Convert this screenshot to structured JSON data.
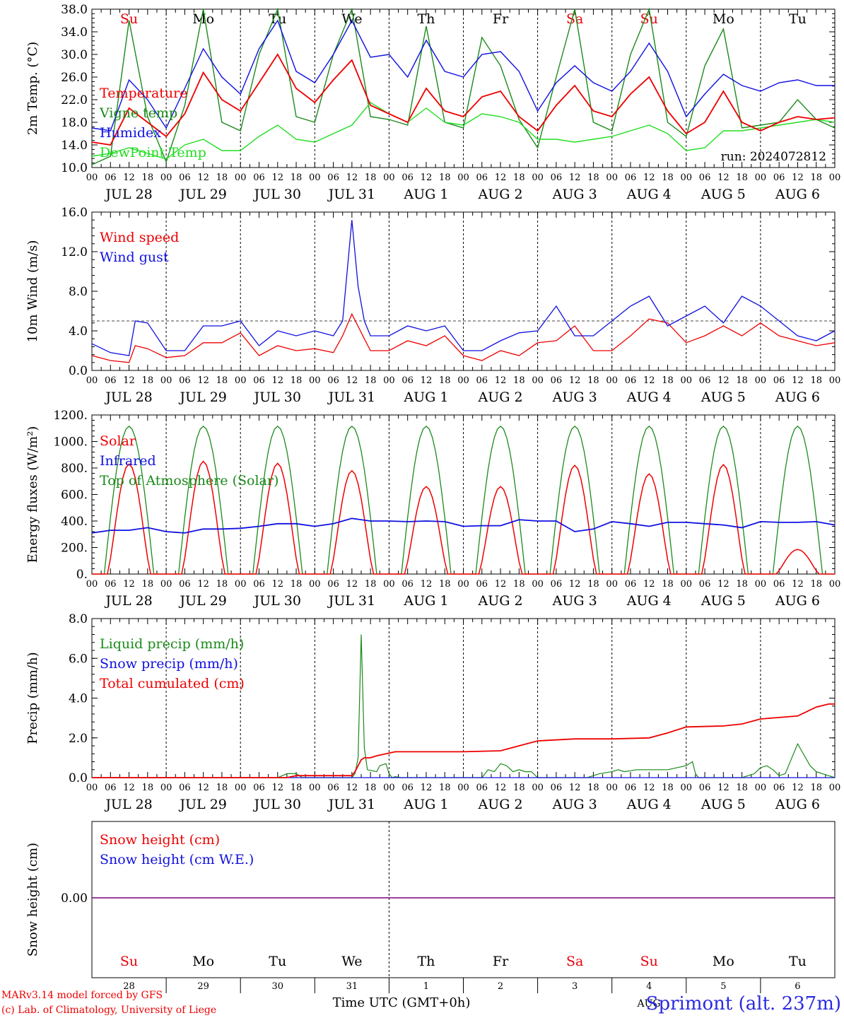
{
  "weekdays": [
    {
      "label": "Su",
      "color": "#e8000b"
    },
    {
      "label": "Mo",
      "color": "#000000"
    },
    {
      "label": "Tu",
      "color": "#000000"
    },
    {
      "label": "We",
      "color": "#000000"
    },
    {
      "label": "Th",
      "color": "#000000"
    },
    {
      "label": "Fr",
      "color": "#000000"
    },
    {
      "label": "Sa",
      "color": "#e8000b"
    },
    {
      "label": "Su",
      "color": "#e8000b"
    },
    {
      "label": "Mo",
      "color": "#000000"
    },
    {
      "label": "Tu",
      "color": "#000000"
    }
  ],
  "dates": [
    "JUL 28",
    "JUL 29",
    "JUL 30",
    "JUL 31",
    "AUG  1",
    "AUG  2",
    "AUG  3",
    "AUG  4",
    "AUG  5",
    "AUG  6"
  ],
  "day_numbers": [
    "28",
    "29",
    "30",
    "31",
    "1",
    "2",
    "3",
    "4",
    "5",
    "6"
  ],
  "hour_labels": [
    "00",
    "06",
    "12",
    "18"
  ],
  "hour_end_label": "00",
  "run_label": "run: 2024072812",
  "footer": {
    "model": "MARv3.14 model forced by GFS",
    "lab": "(c) Lab. of Climatology, University of Liege",
    "xlabel": "Time UTC (GMT+0h)",
    "month": "AUG",
    "station": "Sprimont (alt. 237m)"
  },
  "colors": {
    "red": "#ee0000",
    "darkgreen": "#1a8a1a",
    "blue": "#1010e0",
    "lightgreen": "#22dd22",
    "purple": "#800080"
  },
  "chart_data": [
    {
      "type": "line",
      "ylabel": "2m Temp. (°C)",
      "ylim": [
        10,
        38
      ],
      "yticks": [
        "10.0",
        "14.0",
        "18.0",
        "22.0",
        "26.0",
        "30.0",
        "34.0",
        "38.0"
      ],
      "x_unit": "hours since Jul 28 00 UTC",
      "series": [
        {
          "name": "Temperature",
          "color": "#ee0000",
          "x": [
            0,
            6,
            12,
            18,
            24,
            30,
            36,
            42,
            48,
            54,
            60,
            66,
            72,
            78,
            84,
            90,
            96,
            102,
            108,
            114,
            120,
            126,
            132,
            138,
            144,
            150,
            156,
            162,
            168,
            174,
            180,
            186,
            192,
            198,
            204,
            210,
            216,
            222,
            228,
            234,
            240
          ],
          "y": [
            14.5,
            14.0,
            20.5,
            18.0,
            15.5,
            19.5,
            26.8,
            22.0,
            20.0,
            25.0,
            30.0,
            24.0,
            21.5,
            25.5,
            29.0,
            21.0,
            19.5,
            18.0,
            24.0,
            20.0,
            19.0,
            22.5,
            23.5,
            19.0,
            16.5,
            21.0,
            24.5,
            20.0,
            19.0,
            23.0,
            26.0,
            20.0,
            16.0,
            18.0,
            23.5,
            18.0,
            16.5,
            18.0,
            19.0,
            18.5,
            18.8
          ]
        },
        {
          "name": "Vigne temp",
          "color": "#1a8a1a",
          "x": [
            0,
            6,
            12,
            18,
            24,
            30,
            36,
            42,
            48,
            54,
            60,
            66,
            72,
            78,
            84,
            90,
            96,
            102,
            108,
            114,
            120,
            126,
            132,
            138,
            144,
            150,
            156,
            162,
            168,
            174,
            180,
            186,
            192,
            198,
            204,
            210,
            216,
            222,
            228,
            234,
            240
          ],
          "y": [
            10.5,
            12.0,
            36.0,
            19.0,
            11.0,
            21.0,
            38.0,
            18.0,
            16.5,
            30.0,
            38.0,
            19.0,
            18.0,
            30.0,
            38.0,
            19.0,
            18.5,
            17.5,
            35.0,
            18.0,
            17.0,
            33.0,
            28.0,
            18.5,
            13.5,
            26.0,
            38.0,
            18.0,
            16.5,
            30.0,
            38.0,
            18.0,
            15.5,
            28.0,
            34.5,
            17.0,
            17.5,
            18.0,
            22.0,
            18.5,
            17.0
          ]
        },
        {
          "name": "Humidex",
          "color": "#1010e0",
          "x": [
            0,
            6,
            12,
            18,
            24,
            30,
            36,
            42,
            48,
            54,
            60,
            66,
            72,
            78,
            84,
            90,
            96,
            102,
            108,
            114,
            120,
            126,
            132,
            138,
            144,
            150,
            156,
            162,
            168,
            174,
            180,
            186,
            192,
            198,
            204,
            210,
            216,
            222,
            228,
            234,
            240
          ],
          "y": [
            17.0,
            16.5,
            25.5,
            22.0,
            17.0,
            24.0,
            31.0,
            26.0,
            23.0,
            31.0,
            36.0,
            27.0,
            25.0,
            30.0,
            36.0,
            29.5,
            30.0,
            26.0,
            32.5,
            27.0,
            26.0,
            30.0,
            30.5,
            27.0,
            20.0,
            25.0,
            28.0,
            25.0,
            23.5,
            27.0,
            32.0,
            27.0,
            19.0,
            23.0,
            26.5,
            24.5,
            23.5,
            25.0,
            25.5,
            24.5,
            24.5
          ]
        },
        {
          "name": "DewPoint Temp",
          "color": "#22dd22",
          "x": [
            0,
            6,
            12,
            18,
            24,
            30,
            36,
            42,
            48,
            54,
            60,
            66,
            72,
            78,
            84,
            90,
            96,
            102,
            108,
            114,
            120,
            126,
            132,
            138,
            144,
            150,
            156,
            162,
            168,
            174,
            180,
            186,
            192,
            198,
            204,
            210,
            216,
            222,
            228,
            234,
            240
          ],
          "y": [
            12.0,
            12.5,
            13.5,
            12.5,
            11.5,
            14.0,
            15.0,
            13.0,
            13.0,
            15.5,
            17.5,
            15.0,
            14.5,
            16.0,
            17.5,
            21.5,
            19.5,
            18.0,
            20.5,
            18.0,
            17.5,
            19.5,
            19.0,
            18.0,
            15.0,
            15.0,
            14.5,
            15.0,
            15.5,
            16.5,
            17.5,
            16.0,
            13.0,
            13.5,
            16.5,
            16.5,
            17.0,
            17.5,
            18.0,
            18.5,
            18.0
          ]
        }
      ]
    },
    {
      "type": "line",
      "ylabel": "10m Wind (m/s)",
      "ylim": [
        0,
        16
      ],
      "yticks": [
        "0.0",
        "4.0",
        "8.0",
        "12.0",
        "16.0"
      ],
      "reference_line": 5.0,
      "series": [
        {
          "name": "Wind speed",
          "color": "#ee0000",
          "x": [
            0,
            6,
            12,
            14,
            18,
            24,
            30,
            36,
            42,
            48,
            54,
            60,
            66,
            72,
            78,
            81,
            84,
            88,
            90,
            96,
            102,
            108,
            114,
            120,
            126,
            132,
            138,
            144,
            150,
            156,
            162,
            168,
            174,
            180,
            186,
            192,
            198,
            204,
            210,
            216,
            222,
            228,
            234,
            240
          ],
          "y": [
            1.5,
            1.0,
            0.8,
            2.5,
            2.2,
            1.3,
            1.5,
            2.8,
            2.8,
            3.8,
            1.5,
            2.5,
            2.0,
            2.2,
            1.8,
            3.5,
            5.7,
            3.2,
            2.0,
            2.0,
            3.0,
            2.5,
            3.5,
            1.5,
            1.0,
            2.0,
            1.5,
            2.8,
            3.0,
            4.5,
            2.0,
            2.0,
            3.5,
            5.2,
            4.8,
            2.8,
            3.5,
            4.5,
            3.5,
            4.8,
            3.5,
            3.0,
            2.5,
            2.8
          ]
        },
        {
          "name": "Wind gust",
          "color": "#1010e0",
          "x": [
            0,
            6,
            12,
            14,
            18,
            24,
            30,
            36,
            42,
            48,
            54,
            60,
            66,
            72,
            78,
            81,
            84,
            86,
            88,
            90,
            96,
            102,
            108,
            114,
            120,
            126,
            132,
            138,
            144,
            150,
            156,
            162,
            168,
            174,
            180,
            186,
            192,
            198,
            204,
            210,
            216,
            222,
            228,
            234,
            240
          ],
          "y": [
            2.7,
            1.8,
            1.5,
            5.0,
            4.8,
            2.0,
            2.0,
            4.5,
            4.5,
            5.0,
            2.5,
            4.0,
            3.5,
            4.0,
            3.5,
            5.0,
            15.2,
            8.5,
            5.0,
            3.5,
            3.5,
            4.5,
            4.0,
            4.5,
            2.0,
            2.0,
            3.0,
            3.8,
            4.0,
            6.5,
            3.5,
            3.5,
            5.0,
            6.5,
            7.5,
            4.5,
            5.5,
            6.5,
            4.8,
            7.5,
            6.5,
            5.0,
            3.5,
            3.0,
            4.0
          ]
        }
      ]
    },
    {
      "type": "line",
      "ylabel": "Energy fluxes (W/m²)",
      "ylim": [
        0,
        1200
      ],
      "yticks": [
        "0.",
        "200.",
        "400.",
        "600.",
        "800.",
        "1000.",
        "1200."
      ],
      "series": [
        {
          "name": "Solar",
          "color": "#ee0000",
          "peaks": [
            830,
            850,
            835,
            780,
            660,
            660,
            820,
            755,
            825,
            185
          ]
        },
        {
          "name": "Infrared",
          "color": "#1010e0",
          "x": [
            0,
            6,
            12,
            18,
            24,
            30,
            36,
            42,
            48,
            54,
            60,
            66,
            72,
            78,
            84,
            90,
            96,
            102,
            108,
            114,
            120,
            126,
            132,
            138,
            144,
            150,
            156,
            162,
            168,
            174,
            180,
            186,
            192,
            198,
            204,
            210,
            216,
            222,
            228,
            234,
            240
          ],
          "y": [
            310,
            330,
            330,
            350,
            320,
            310,
            340,
            340,
            345,
            360,
            380,
            380,
            360,
            380,
            420,
            400,
            400,
            395,
            400,
            395,
            360,
            365,
            365,
            410,
            400,
            400,
            320,
            340,
            395,
            380,
            360,
            390,
            390,
            380,
            370,
            350,
            395,
            390,
            390,
            395,
            370
          ]
        },
        {
          "name": "Top of Atmosphere (Solar)",
          "color": "#1a8a1a",
          "peak": 1115
        }
      ]
    },
    {
      "type": "line",
      "ylabel": "Precip (mm/h)",
      "ylim": [
        0,
        8
      ],
      "yticks": [
        "0.0",
        "2.0",
        "4.0",
        "6.0",
        "8.0"
      ],
      "series": [
        {
          "name": "Liquid precip (mm/h)",
          "color": "#1a8a1a",
          "x": [
            0,
            60,
            63,
            66,
            68,
            84,
            85,
            86,
            87,
            88,
            89,
            92,
            93,
            95,
            96,
            97,
            98,
            100,
            126,
            128,
            130,
            132,
            134,
            136,
            138,
            140,
            142,
            144,
            150,
            160,
            164,
            168,
            170,
            172,
            176,
            186,
            192,
            194,
            195,
            196,
            198,
            200,
            210,
            212,
            214,
            216,
            218,
            220,
            222,
            224,
            228,
            232,
            234,
            236,
            238,
            240
          ],
          "y": [
            0,
            0,
            0.2,
            0.2,
            0,
            0,
            0.2,
            1.0,
            7.2,
            1.5,
            0.4,
            0.3,
            0.6,
            0.7,
            0.2,
            0,
            0.05,
            0,
            0,
            0.4,
            0.3,
            0.7,
            0.6,
            0.3,
            0.4,
            0.3,
            0.3,
            0,
            0,
            0,
            0.2,
            0.3,
            0.4,
            0.3,
            0.4,
            0.4,
            0.6,
            0.8,
            0.2,
            0,
            0,
            0,
            0,
            0.1,
            0.2,
            0.5,
            0.6,
            0.4,
            0.1,
            0.2,
            1.7,
            0.6,
            0.3,
            0.2,
            0.1,
            0
          ]
        },
        {
          "name": "Snow precip (mm/h)",
          "color": "#1010e0",
          "x": [
            0,
            240
          ],
          "y": [
            0,
            0
          ]
        },
        {
          "name": "Total cumulated (cm)",
          "color": "#ee0000",
          "x": [
            0,
            63,
            66,
            84,
            85,
            87,
            88,
            90,
            92,
            95,
            98,
            120,
            132,
            138,
            144,
            156,
            168,
            180,
            186,
            192,
            204,
            210,
            216,
            228,
            234,
            238,
            240
          ],
          "y": [
            0,
            0,
            0.1,
            0.1,
            0.3,
            0.9,
            1.0,
            1.0,
            1.1,
            1.2,
            1.3,
            1.3,
            1.35,
            1.6,
            1.85,
            1.95,
            1.95,
            2.0,
            2.25,
            2.55,
            2.6,
            2.7,
            2.95,
            3.1,
            3.55,
            3.7,
            3.7
          ]
        }
      ]
    },
    {
      "type": "line",
      "ylabel": "Snow height (cm)",
      "yticks": [
        "0.00"
      ],
      "series": [
        {
          "name": "Snow height (cm)",
          "color": "#ee0000",
          "x": [
            0,
            240
          ],
          "y": [
            0,
            0
          ]
        },
        {
          "name": "Snow height (cm W.E.)",
          "color": "#1010e0",
          "x": [
            0,
            240
          ],
          "y": [
            0,
            0
          ]
        }
      ]
    }
  ]
}
